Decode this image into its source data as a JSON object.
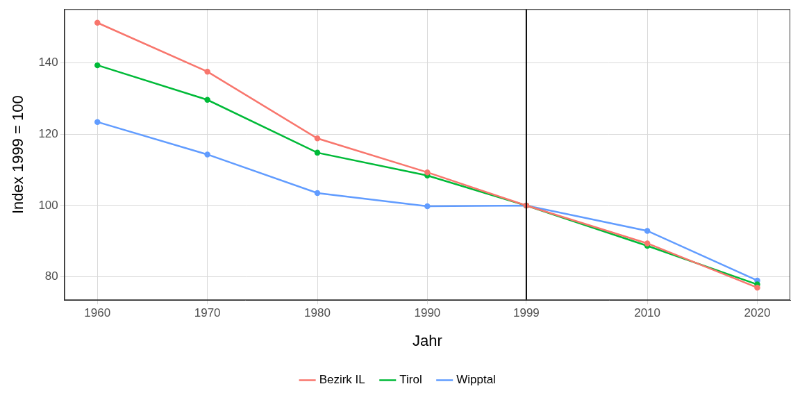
{
  "chart_data": {
    "type": "line",
    "x_label": "Jahr",
    "y_label": "Index 1999 = 100",
    "x": [
      1960,
      1970,
      1980,
      1990,
      1999,
      2010,
      2020
    ],
    "series": [
      {
        "name": "Bezirk IL",
        "color": "#F8766D",
        "values": [
          151.2,
          137.5,
          118.8,
          109.3,
          100,
          89.4,
          77.0
        ]
      },
      {
        "name": "Tirol",
        "color": "#00BA38",
        "values": [
          139.3,
          129.6,
          114.8,
          108.4,
          100,
          88.7,
          77.9
        ]
      },
      {
        "name": "Wipptal",
        "color": "#619CFF",
        "values": [
          123.4,
          114.3,
          103.5,
          99.8,
          100,
          92.9,
          79.0
        ]
      }
    ],
    "xlim": [
      1957,
      2023
    ],
    "xticks": [
      1960,
      1970,
      1980,
      1990,
      1999,
      2010,
      2020
    ],
    "ylim": [
      73.5,
      155
    ],
    "yticks": [
      80,
      100,
      120,
      140
    ],
    "vline": 1999,
    "grid": true,
    "legend": "bottom",
    "marker": "circle",
    "line_style": "solid"
  }
}
